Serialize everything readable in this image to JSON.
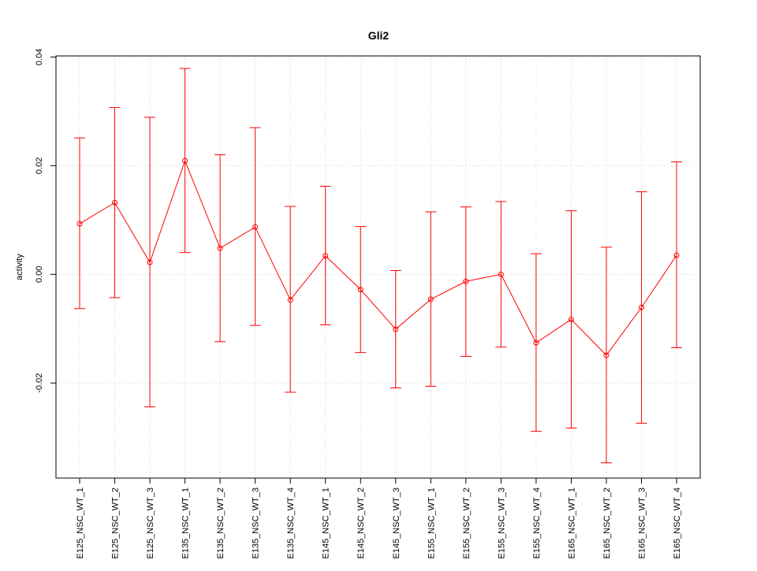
{
  "chart_data": {
    "type": "line",
    "title": "Gli2",
    "xlabel": "",
    "ylabel": "activity",
    "ylim": [
      -0.0375,
      0.0402
    ],
    "yticks": [
      -0.02,
      0.0,
      0.02,
      0.04
    ],
    "ytick_labels": [
      "-0.02",
      "0.00",
      "0.02",
      "0.04"
    ],
    "grid": true,
    "color": "#ff0000",
    "categories": [
      "E125_NSC_WT_1",
      "E125_NSC_WT_2",
      "E125_NSC_WT_3",
      "E135_NSC_WT_1",
      "E135_NSC_WT_2",
      "E135_NSC_WT_3",
      "E135_NSC_WT_4",
      "E145_NSC_WT_1",
      "E145_NSC_WT_2",
      "E145_NSC_WT_3",
      "E155_NSC_WT_1",
      "E155_NSC_WT_2",
      "E155_NSC_WT_3",
      "E155_NSC_WT_4",
      "E165_NSC_WT_1",
      "E165_NSC_WT_2",
      "E165_NSC_WT_3",
      "E165_NSC_WT_4"
    ],
    "values": [
      0.0093,
      0.0132,
      0.0022,
      0.0209,
      0.0048,
      0.0087,
      -0.0047,
      0.0034,
      -0.0028,
      -0.0101,
      -0.0046,
      -0.0013,
      0.0,
      -0.0126,
      -0.0083,
      -0.0149,
      -0.0061,
      0.0035
    ],
    "upper": [
      0.0251,
      0.0307,
      0.0289,
      0.0379,
      0.022,
      0.027,
      0.0125,
      0.0162,
      0.0088,
      0.0007,
      0.0115,
      0.0124,
      0.0134,
      0.0038,
      0.0117,
      0.005,
      0.0152,
      0.0207
    ],
    "lower": [
      -0.0063,
      -0.0043,
      -0.0244,
      0.004,
      -0.0124,
      -0.0094,
      -0.0217,
      -0.0093,
      -0.0144,
      -0.0209,
      -0.0206,
      -0.0151,
      -0.0134,
      -0.0289,
      -0.0283,
      -0.0347,
      -0.0274,
      -0.0135
    ]
  }
}
